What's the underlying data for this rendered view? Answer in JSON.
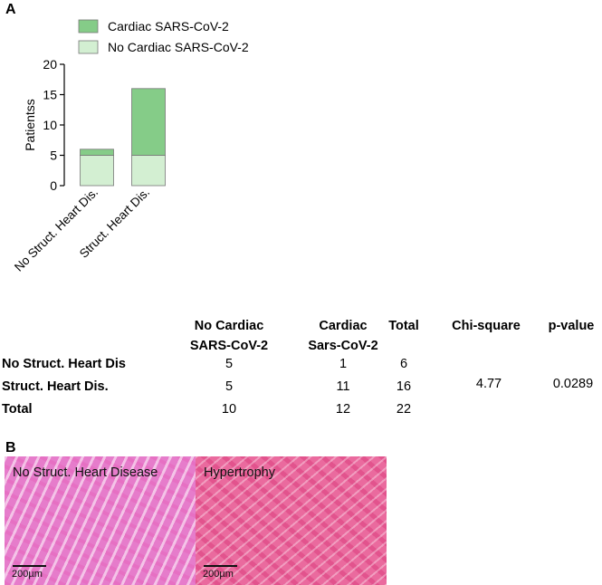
{
  "panel_a": {
    "letter": "A"
  },
  "panel_b": {
    "letter": "B"
  },
  "chart_data": {
    "type": "bar",
    "stacked": true,
    "categories": [
      "No Struct. Heart Dis.",
      "Struct. Heart Dis."
    ],
    "series": [
      {
        "name": "No Cardiac SARS-CoV-2",
        "values": [
          5,
          5
        ],
        "color": "#d3efd2"
      },
      {
        "name": "Cardiac SARS-CoV-2",
        "values": [
          1,
          11
        ],
        "color": "#85cc88"
      }
    ],
    "title": "",
    "xlabel": "",
    "ylabel": "Patientss",
    "ylim": [
      0,
      20
    ],
    "yticks": [
      "0",
      "5",
      "10",
      "15",
      "20"
    ],
    "legend_position": "top-left",
    "grid": false
  },
  "table": {
    "col_headers": [
      [
        "No Cardiac",
        "SARS-CoV-2"
      ],
      [
        "Cardiac",
        "Sars-CoV-2"
      ],
      [
        "Total"
      ],
      [
        "Chi-square"
      ],
      [
        "p-value"
      ]
    ],
    "rows": [
      {
        "label": "No Struct. Heart Dis",
        "values": [
          "5",
          "1",
          "6"
        ]
      },
      {
        "label": "Struct. Heart Dis.",
        "values": [
          "5",
          "11",
          "16"
        ]
      },
      {
        "label": "Total",
        "values": [
          "10",
          "12",
          "22"
        ]
      }
    ],
    "chi_square": "4.77",
    "p_value": "0.0289"
  },
  "micrographs": [
    {
      "label": "No Struct. Heart Disease",
      "scale": "200µm"
    },
    {
      "label": "Hypertrophy",
      "scale": "200µm"
    }
  ]
}
